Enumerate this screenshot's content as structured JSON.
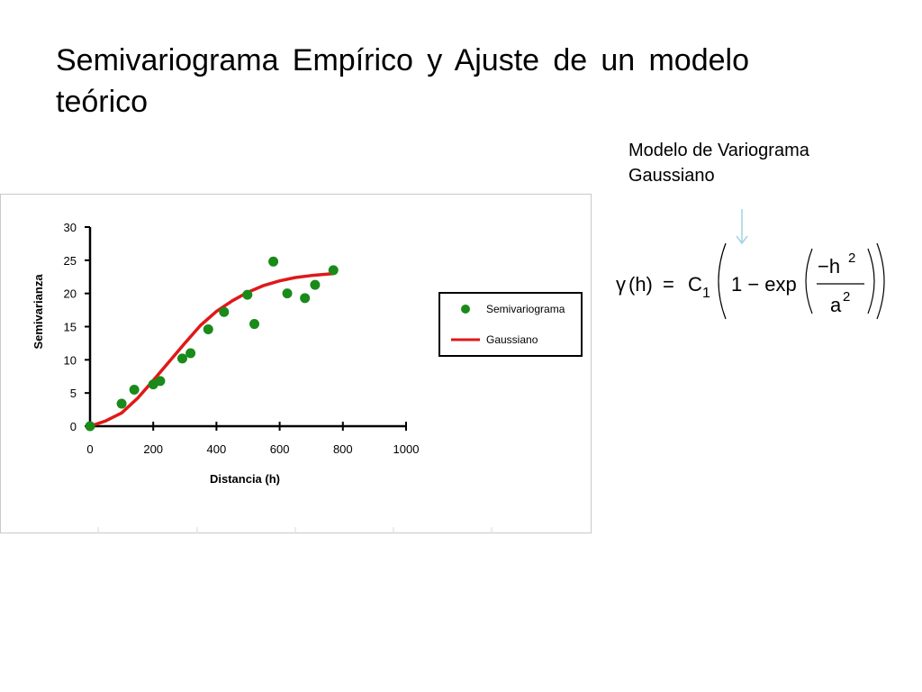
{
  "slide": {
    "title": "Semivariograma  Empírico  y  Ajuste  de  un modelo teórico",
    "model_label_line1": "Modelo de Variograma",
    "model_label_line2": "Gaussiano"
  },
  "formula": {
    "gamma": "γ",
    "h_arg": "(h)",
    "equals": "=",
    "c": "C",
    "c_sub": "1",
    "one_minus": "1 − exp",
    "numerator": "−h",
    "num_exp": "2",
    "denominator": "a",
    "den_exp": "2"
  },
  "chart_data": {
    "type": "scatter",
    "xlabel": "Distancia (h)",
    "ylabel": "Semivarianza",
    "xlim": [
      0,
      1000
    ],
    "ylim": [
      0,
      30
    ],
    "xticks": [
      0,
      200,
      400,
      600,
      800,
      1000
    ],
    "yticks": [
      0,
      5,
      10,
      15,
      20,
      25,
      30
    ],
    "legend_position": "right",
    "colors": {
      "points": "#1a8a1a",
      "curve": "#e01818"
    },
    "series": [
      {
        "name": "Semivariograma",
        "kind": "scatter",
        "x": [
          0,
          100,
          140,
          200,
          222,
          292,
          318,
          374,
          424,
          498,
          520,
          580,
          624,
          680,
          712,
          770
        ],
        "y": [
          0,
          3.4,
          5.5,
          6.3,
          6.8,
          10.2,
          11.0,
          14.6,
          17.2,
          19.8,
          15.4,
          24.8,
          20.0,
          19.3,
          21.3,
          23.5
        ]
      },
      {
        "name": "Gaussiano",
        "kind": "line",
        "x": [
          0,
          50,
          100,
          150,
          200,
          250,
          300,
          350,
          400,
          450,
          500,
          550,
          600,
          650,
          700,
          750,
          770
        ],
        "y": [
          0,
          0.8,
          2.0,
          4.2,
          6.9,
          9.7,
          12.5,
          15.2,
          17.3,
          18.9,
          20.2,
          21.2,
          21.9,
          22.4,
          22.7,
          22.9,
          23.0
        ]
      }
    ]
  }
}
